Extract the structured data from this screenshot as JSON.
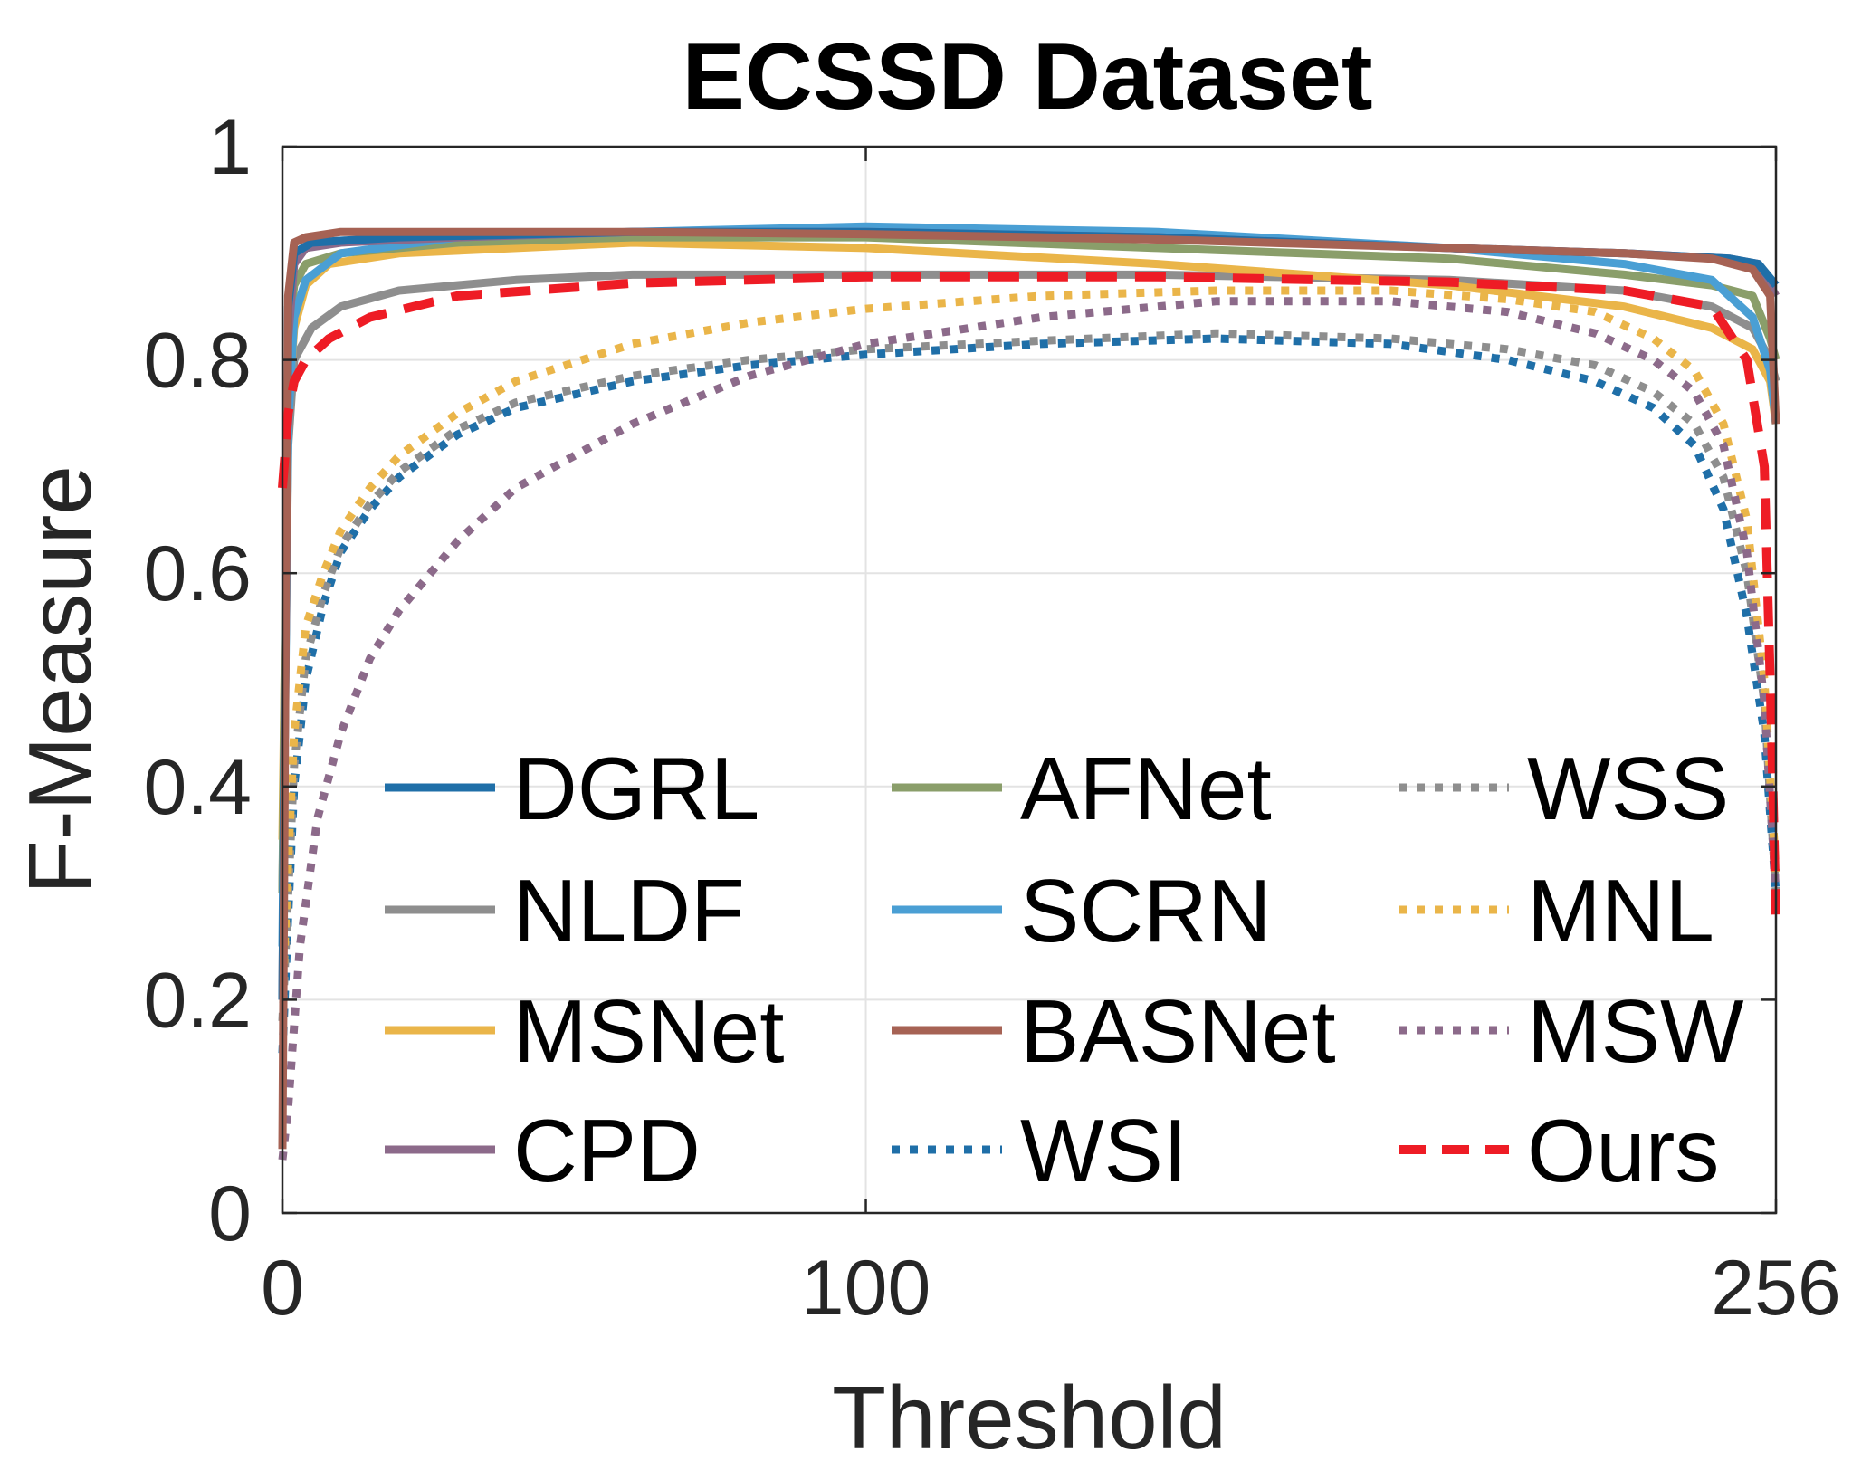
{
  "chart_data": {
    "type": "line",
    "title": "ECSSD Dataset",
    "xlabel": "Threshold",
    "ylabel": "F-Measure",
    "xlim": [
      0,
      256
    ],
    "ylim": [
      0,
      1
    ],
    "xticks": [
      0,
      100,
      256
    ],
    "xtick_labels": [
      "0",
      "100",
      "256"
    ],
    "yticks": [
      0,
      0.2,
      0.4,
      0.6,
      0.8,
      1
    ],
    "ytick_labels": [
      "0",
      "0.2",
      "0.4",
      "0.6",
      "0.8",
      "1"
    ],
    "grid": true,
    "legend_position": "bottom",
    "legend_columns": 3,
    "series": [
      {
        "name": "DGRL",
        "color": "#1f6fa8",
        "style": "solid",
        "x": [
          0,
          1,
          2,
          5,
          20,
          60,
          100,
          150,
          200,
          230,
          248,
          253,
          256
        ],
        "y": [
          0.2,
          0.85,
          0.9,
          0.91,
          0.915,
          0.92,
          0.92,
          0.915,
          0.905,
          0.9,
          0.895,
          0.89,
          0.87
        ]
      },
      {
        "name": "NLDF",
        "color": "#8e8e8e",
        "style": "solid",
        "x": [
          0,
          1,
          2,
          5,
          10,
          20,
          40,
          60,
          100,
          150,
          200,
          230,
          245,
          252,
          255,
          256
        ],
        "y": [
          0.3,
          0.72,
          0.8,
          0.83,
          0.85,
          0.865,
          0.875,
          0.88,
          0.88,
          0.88,
          0.875,
          0.865,
          0.85,
          0.83,
          0.8,
          0.78
        ]
      },
      {
        "name": "MSNet",
        "color": "#eab549",
        "style": "solid",
        "x": [
          0,
          1,
          2,
          4,
          8,
          20,
          60,
          100,
          150,
          200,
          230,
          245,
          252,
          255,
          256
        ],
        "y": [
          0.35,
          0.75,
          0.83,
          0.87,
          0.89,
          0.9,
          0.91,
          0.905,
          0.89,
          0.87,
          0.85,
          0.83,
          0.81,
          0.78,
          0.74
        ]
      },
      {
        "name": "CPD",
        "color": "#8c6a8a",
        "style": "solid",
        "x": [
          0,
          1,
          2,
          4,
          10,
          30,
          60,
          100,
          150,
          200,
          230,
          248,
          253,
          256
        ],
        "y": [
          0.2,
          0.82,
          0.89,
          0.905,
          0.91,
          0.915,
          0.92,
          0.92,
          0.915,
          0.905,
          0.9,
          0.895,
          0.89,
          0.86
        ]
      },
      {
        "name": "AFNet",
        "color": "#8a9e6a",
        "style": "solid",
        "x": [
          0,
          1,
          2,
          4,
          10,
          30,
          60,
          100,
          150,
          200,
          230,
          245,
          252,
          255,
          256
        ],
        "y": [
          0.3,
          0.82,
          0.87,
          0.89,
          0.9,
          0.91,
          0.915,
          0.915,
          0.905,
          0.895,
          0.88,
          0.87,
          0.86,
          0.82,
          0.8
        ]
      },
      {
        "name": "SCRN",
        "color": "#4a9fd4",
        "style": "solid",
        "x": [
          0,
          1,
          2,
          4,
          10,
          30,
          60,
          100,
          150,
          200,
          230,
          245,
          252,
          255,
          256
        ],
        "y": [
          0.25,
          0.74,
          0.84,
          0.875,
          0.9,
          0.915,
          0.92,
          0.925,
          0.92,
          0.905,
          0.89,
          0.875,
          0.84,
          0.79,
          0.74
        ]
      },
      {
        "name": "BASNet",
        "color": "#a66254",
        "style": "solid",
        "x": [
          0,
          0.5,
          1,
          2,
          4,
          10,
          30,
          60,
          100,
          150,
          200,
          230,
          245,
          252,
          255,
          256
        ],
        "y": [
          0.06,
          0.5,
          0.86,
          0.91,
          0.915,
          0.92,
          0.92,
          0.92,
          0.918,
          0.913,
          0.905,
          0.9,
          0.895,
          0.885,
          0.86,
          0.74
        ]
      },
      {
        "name": "WSI",
        "color": "#1f6fa8",
        "style": "dotted",
        "x": [
          0,
          1,
          2,
          4,
          7,
          10,
          15,
          20,
          30,
          40,
          60,
          80,
          100,
          130,
          160,
          190,
          210,
          225,
          235,
          242,
          247,
          251,
          254,
          256
        ],
        "y": [
          0.15,
          0.28,
          0.4,
          0.5,
          0.57,
          0.62,
          0.66,
          0.69,
          0.73,
          0.755,
          0.78,
          0.795,
          0.805,
          0.815,
          0.82,
          0.815,
          0.8,
          0.78,
          0.755,
          0.72,
          0.66,
          0.56,
          0.45,
          0.3
        ]
      },
      {
        "name": "WSS",
        "color": "#8e8e8e",
        "style": "dotted",
        "x": [
          0,
          1,
          2,
          4,
          7,
          10,
          15,
          20,
          30,
          40,
          60,
          80,
          100,
          130,
          160,
          190,
          210,
          225,
          235,
          242,
          247,
          251,
          254,
          256
        ],
        "y": [
          0.18,
          0.3,
          0.42,
          0.52,
          0.58,
          0.625,
          0.665,
          0.695,
          0.735,
          0.76,
          0.785,
          0.8,
          0.81,
          0.818,
          0.825,
          0.82,
          0.81,
          0.795,
          0.77,
          0.74,
          0.69,
          0.6,
          0.48,
          0.3
        ]
      },
      {
        "name": "MNL",
        "color": "#eab549",
        "style": "dotted",
        "x": [
          0,
          1,
          2,
          4,
          7,
          10,
          15,
          20,
          30,
          40,
          60,
          80,
          100,
          130,
          160,
          190,
          210,
          225,
          235,
          242,
          247,
          251,
          254,
          256
        ],
        "y": [
          0.2,
          0.33,
          0.45,
          0.55,
          0.6,
          0.64,
          0.68,
          0.71,
          0.75,
          0.78,
          0.815,
          0.835,
          0.848,
          0.86,
          0.865,
          0.865,
          0.857,
          0.845,
          0.82,
          0.79,
          0.74,
          0.65,
          0.5,
          0.32
        ]
      },
      {
        "name": "MSW",
        "color": "#8c6a8a",
        "style": "dotted",
        "x": [
          0,
          1,
          3,
          6,
          10,
          15,
          20,
          30,
          40,
          60,
          80,
          100,
          130,
          160,
          190,
          210,
          225,
          235,
          242,
          247,
          251,
          254,
          256
        ],
        "y": [
          0.05,
          0.1,
          0.25,
          0.37,
          0.45,
          0.52,
          0.565,
          0.63,
          0.68,
          0.74,
          0.785,
          0.815,
          0.84,
          0.855,
          0.855,
          0.845,
          0.825,
          0.8,
          0.77,
          0.72,
          0.62,
          0.48,
          0.3
        ]
      },
      {
        "name": "Ours",
        "color": "#ee1c25",
        "style": "dashed",
        "x": [
          0,
          1,
          2,
          4,
          8,
          15,
          30,
          60,
          100,
          150,
          200,
          230,
          245,
          251,
          254,
          255,
          256
        ],
        "y": [
          0.68,
          0.75,
          0.78,
          0.8,
          0.82,
          0.84,
          0.86,
          0.872,
          0.878,
          0.878,
          0.873,
          0.865,
          0.85,
          0.8,
          0.7,
          0.5,
          0.28
        ]
      }
    ]
  }
}
